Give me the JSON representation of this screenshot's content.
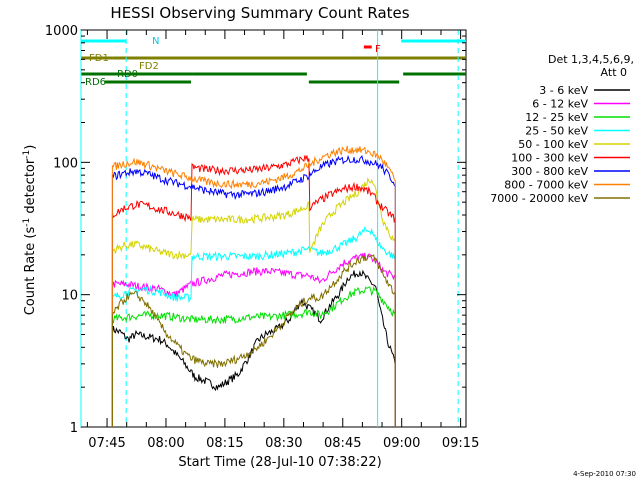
{
  "chart_data": {
    "type": "line",
    "title": "HESSI Observing Summary Count Rates",
    "xlabel": "Start Time (28-Jul-10 07:38:22)",
    "ylabel_main": "Count Rate (s",
    "ylabel_sup1": "-1",
    "ylabel_mid": " detector",
    "ylabel_sup2": "-1",
    "ylabel_end": ")",
    "yscale": "log",
    "ylim": [
      1,
      1000
    ],
    "xlim_minutes": [
      0,
      98
    ],
    "yticks": [
      {
        "value": 1,
        "label": "1"
      },
      {
        "value": 10,
        "label": "10"
      },
      {
        "value": 100,
        "label": "100"
      },
      {
        "value": 1000,
        "label": "1000"
      }
    ],
    "xticks": [
      {
        "minute": 6.63,
        "label": "07:45"
      },
      {
        "minute": 21.63,
        "label": "08:00"
      },
      {
        "minute": 36.63,
        "label": "08:15"
      },
      {
        "minute": 51.63,
        "label": "08:30"
      },
      {
        "minute": 66.63,
        "label": "08:45"
      },
      {
        "minute": 81.63,
        "label": "09:00"
      },
      {
        "minute": 96.63,
        "label": "09:15"
      }
    ],
    "legend_title": [
      "Det 1,3,4,5,6,9,",
      "Att 0"
    ],
    "series": [
      {
        "name": "3 - 6 keV",
        "color": "#000000",
        "values": [
          [
            8,
            5.5
          ],
          [
            10,
            5.2
          ],
          [
            12,
            4.6
          ],
          [
            14,
            5.0
          ],
          [
            17,
            4.8
          ],
          [
            20,
            4.6
          ],
          [
            22,
            4.2
          ],
          [
            24,
            3.6
          ],
          [
            26,
            3.1
          ],
          [
            28,
            2.6
          ],
          [
            29,
            2.4
          ],
          [
            32,
            2.2
          ],
          [
            35,
            2.0
          ],
          [
            40,
            2.5
          ],
          [
            43,
            3.5
          ],
          [
            45,
            4.5
          ],
          [
            47,
            5.0
          ],
          [
            50,
            5.5
          ],
          [
            53,
            6.5
          ],
          [
            56,
            9.0
          ],
          [
            58,
            8.0
          ],
          [
            61,
            6.5
          ],
          [
            63,
            8.0
          ],
          [
            66,
            10.5
          ],
          [
            68,
            13.5
          ],
          [
            71,
            15.0
          ],
          [
            73,
            13.0
          ],
          [
            75,
            11.5
          ],
          [
            76,
            8.0
          ],
          [
            78,
            4.5
          ],
          [
            80,
            3.0
          ]
        ]
      },
      {
        "name": "6 - 12 keV",
        "color": "#ff00ff",
        "values": [
          [
            8,
            12.0
          ],
          [
            12,
            12.0
          ],
          [
            15,
            11.5
          ],
          [
            20,
            11.0
          ],
          [
            24,
            10.0
          ],
          [
            28,
            12.0
          ],
          [
            32,
            13.0
          ],
          [
            36,
            14.0
          ],
          [
            40,
            14.5
          ],
          [
            44,
            15.0
          ],
          [
            48,
            15.0
          ],
          [
            52,
            14.5
          ],
          [
            56,
            14.0
          ],
          [
            58,
            14.0
          ],
          [
            61,
            12.5
          ],
          [
            64,
            15.0
          ],
          [
            67,
            17.5
          ],
          [
            70,
            19.0
          ],
          [
            73,
            19.5
          ],
          [
            75,
            18.0
          ],
          [
            77,
            15.0
          ],
          [
            80,
            13.5
          ]
        ]
      },
      {
        "name": "12 - 25 keV",
        "color": "#00e000",
        "values": [
          [
            8,
            6.5
          ],
          [
            12,
            6.8
          ],
          [
            16,
            7.0
          ],
          [
            20,
            7.0
          ],
          [
            24,
            6.8
          ],
          [
            28,
            6.5
          ],
          [
            32,
            6.5
          ],
          [
            36,
            6.5
          ],
          [
            40,
            6.6
          ],
          [
            44,
            6.8
          ],
          [
            48,
            6.8
          ],
          [
            52,
            7.0
          ],
          [
            56,
            7.2
          ],
          [
            58,
            7.5
          ],
          [
            61,
            7.0
          ],
          [
            64,
            8.0
          ],
          [
            67,
            9.5
          ],
          [
            70,
            10.5
          ],
          [
            73,
            11.0
          ],
          [
            75,
            10.5
          ],
          [
            77,
            9.0
          ],
          [
            80,
            7.0
          ]
        ]
      },
      {
        "name": "25 - 50 keV",
        "color": "#00ffff",
        "values": [
          [
            8,
            9.5
          ],
          [
            12,
            10.5
          ],
          [
            16,
            11.0
          ],
          [
            20,
            10.5
          ],
          [
            24,
            9.5
          ],
          [
            28,
            9.5
          ],
          [
            28.5,
            19.5
          ],
          [
            32,
            19.5
          ],
          [
            36,
            19.5
          ],
          [
            40,
            19.5
          ],
          [
            44,
            19.5
          ],
          [
            48,
            20.0
          ],
          [
            52,
            20.5
          ],
          [
            56,
            21.5
          ],
          [
            58,
            22.0
          ],
          [
            61,
            20.5
          ],
          [
            64,
            22.0
          ],
          [
            67,
            24.0
          ],
          [
            70,
            27.0
          ],
          [
            72,
            30.0
          ],
          [
            74,
            31.0
          ],
          [
            75,
            26.0
          ],
          [
            77,
            22.0
          ],
          [
            80,
            19.0
          ]
        ]
      },
      {
        "name": "50 - 100 keV",
        "color": "#d4d400",
        "values": [
          [
            8,
            21.5
          ],
          [
            11,
            23.5
          ],
          [
            14,
            24.0
          ],
          [
            17,
            22.5
          ],
          [
            20,
            21.0
          ],
          [
            24,
            20.0
          ],
          [
            28,
            20.0
          ],
          [
            28.5,
            37.0
          ],
          [
            32,
            37.0
          ],
          [
            36,
            37.0
          ],
          [
            40,
            37.0
          ],
          [
            44,
            37.5
          ],
          [
            48,
            38.5
          ],
          [
            52,
            40.0
          ],
          [
            55,
            43.0
          ],
          [
            57,
            46.0
          ],
          [
            58,
            47.0
          ],
          [
            58.5,
            22.0
          ],
          [
            61,
            32.0
          ],
          [
            64,
            42.0
          ],
          [
            67,
            50.0
          ],
          [
            70,
            58.0
          ],
          [
            73,
            72.0
          ],
          [
            74,
            76.0
          ],
          [
            75,
            62.0
          ],
          [
            77,
            36.0
          ],
          [
            80,
            24.0
          ]
        ]
      },
      {
        "name": "100 - 300 keV",
        "color": "#ff0000",
        "values": [
          [
            8,
            40.0
          ],
          [
            11,
            45.0
          ],
          [
            14,
            48.0
          ],
          [
            17,
            47.0
          ],
          [
            20,
            44.0
          ],
          [
            24,
            41.0
          ],
          [
            28,
            38.0
          ],
          [
            28.5,
            92.0
          ],
          [
            32,
            88.0
          ],
          [
            36,
            87.0
          ],
          [
            40,
            87.0
          ],
          [
            44,
            88.0
          ],
          [
            48,
            91.0
          ],
          [
            52,
            96.0
          ],
          [
            55,
            103.0
          ],
          [
            57,
            108.0
          ],
          [
            58,
            106.0
          ],
          [
            58.5,
            46.0
          ],
          [
            61,
            52.0
          ],
          [
            64,
            58.0
          ],
          [
            67,
            63.0
          ],
          [
            70,
            66.0
          ],
          [
            72,
            63.0
          ],
          [
            74,
            58.0
          ],
          [
            76,
            48.0
          ],
          [
            78,
            42.0
          ],
          [
            80,
            37.0
          ]
        ]
      },
      {
        "name": "300 - 800 keV",
        "color": "#0000ff",
        "values": [
          [
            8,
            78.0
          ],
          [
            11,
            83.0
          ],
          [
            14,
            86.0
          ],
          [
            17,
            82.0
          ],
          [
            20,
            76.0
          ],
          [
            24,
            70.0
          ],
          [
            28,
            66.0
          ],
          [
            32,
            61.0
          ],
          [
            36,
            58.0
          ],
          [
            40,
            57.0
          ],
          [
            44,
            58.0
          ],
          [
            48,
            61.0
          ],
          [
            52,
            66.0
          ],
          [
            55,
            72.0
          ],
          [
            58,
            80.0
          ],
          [
            61,
            92.0
          ],
          [
            64,
            100.0
          ],
          [
            67,
            105.0
          ],
          [
            70,
            106.0
          ],
          [
            73,
            103.0
          ],
          [
            76,
            95.0
          ],
          [
            78,
            82.0
          ],
          [
            80,
            70.0
          ]
        ]
      },
      {
        "name": "800 - 7000 keV",
        "color": "#ff8000",
        "values": [
          [
            8,
            92.0
          ],
          [
            11,
            98.0
          ],
          [
            14,
            101.0
          ],
          [
            17,
            96.0
          ],
          [
            20,
            89.0
          ],
          [
            24,
            82.0
          ],
          [
            28,
            76.0
          ],
          [
            32,
            71.0
          ],
          [
            36,
            69.0
          ],
          [
            40,
            68.0
          ],
          [
            44,
            69.0
          ],
          [
            48,
            72.0
          ],
          [
            52,
            78.0
          ],
          [
            55,
            85.0
          ],
          [
            58,
            95.0
          ],
          [
            61,
            108.0
          ],
          [
            64,
            118.0
          ],
          [
            67,
            124.0
          ],
          [
            70,
            125.0
          ],
          [
            73,
            121.0
          ],
          [
            76,
            110.0
          ],
          [
            78,
            93.0
          ],
          [
            80,
            72.0
          ]
        ]
      },
      {
        "name": "7000 - 20000 keV",
        "color": "#807000",
        "values": [
          [
            8,
            7.0
          ],
          [
            10,
            8.5
          ],
          [
            12,
            9.8
          ],
          [
            14,
            10.0
          ],
          [
            16,
            9.0
          ],
          [
            18,
            7.5
          ],
          [
            20,
            6.0
          ],
          [
            22,
            5.0
          ],
          [
            24,
            4.3
          ],
          [
            26,
            3.7
          ],
          [
            28,
            3.3
          ],
          [
            32,
            3.0
          ],
          [
            36,
            3.0
          ],
          [
            40,
            3.3
          ],
          [
            44,
            3.8
          ],
          [
            47,
            4.5
          ],
          [
            50,
            5.5
          ],
          [
            53,
            7.0
          ],
          [
            56,
            8.5
          ],
          [
            58,
            9.5
          ],
          [
            61,
            9.5
          ],
          [
            64,
            12.0
          ],
          [
            67,
            15.0
          ],
          [
            70,
            18.0
          ],
          [
            73,
            19.5
          ],
          [
            75,
            18.5
          ],
          [
            77,
            14.0
          ],
          [
            80,
            10.0
          ]
        ]
      }
    ]
  },
  "flags": {
    "N_label": "N",
    "F_label": "F",
    "FD1_label": "FD1",
    "FD2_label": "FD2",
    "RD0_label": "RD0",
    "RD6_label": "RD6",
    "night_color": "#00ffff",
    "flare_color": "#ff0000",
    "fd_color": "#808000",
    "rd_color": "#007000"
  },
  "timestamp": "4-Sep-2010 07:30"
}
